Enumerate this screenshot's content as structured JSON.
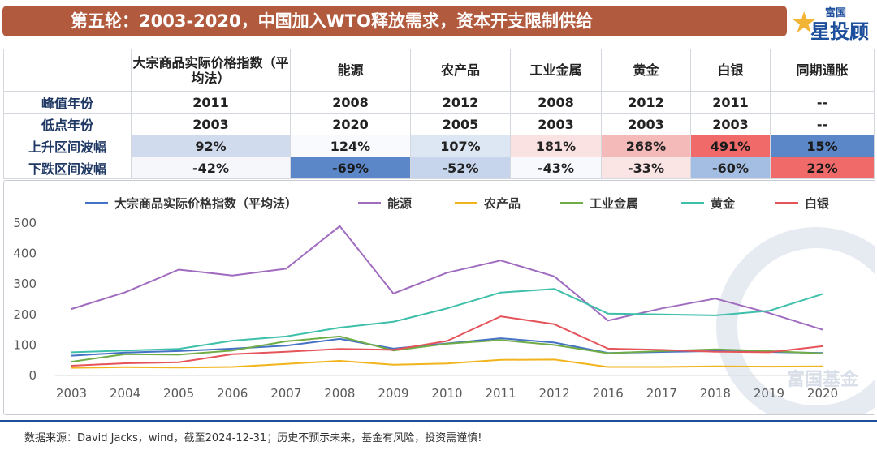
{
  "header": {
    "title": "第五轮：2003-2020，中国加入WTO释放需求，资本开支限制供给",
    "logo_small": "富国",
    "logo_big": "星投顾"
  },
  "table": {
    "columns": [
      "大宗商品实际价格指数（平均法）",
      "能源",
      "农产品",
      "工业金属",
      "黄金",
      "白银",
      "同期通胀"
    ],
    "rows": [
      {
        "label": "峰值年份",
        "cells": [
          "2011",
          "2008",
          "2012",
          "2008",
          "2012",
          "2011",
          "--"
        ]
      },
      {
        "label": "低点年份",
        "cells": [
          "2003",
          "2020",
          "2005",
          "2003",
          "2003",
          "2003",
          "--"
        ]
      },
      {
        "label": "上升区间波幅",
        "cells": [
          "92%",
          "124%",
          "107%",
          "181%",
          "268%",
          "491%",
          "15%"
        ],
        "colors": [
          "#d0dcee",
          "#f9fafd",
          "#dde6f3",
          "#fbe2e2",
          "#f4b9b9",
          "#f06a6a",
          "#5b86c8"
        ]
      },
      {
        "label": "下跌区间波幅",
        "cells": [
          "-42%",
          "-69%",
          "-52%",
          "-43%",
          "-33%",
          "-60%",
          "22%"
        ],
        "colors": [
          "#f5f7fb",
          "#5b86c8",
          "#c6d5ec",
          "#f7f9fc",
          "#fbe4e4",
          "#a4bde2",
          "#f06a6a"
        ]
      }
    ]
  },
  "chart_data": {
    "type": "line",
    "categories": [
      "2003",
      "2004",
      "2005",
      "2006",
      "2007",
      "2008",
      "2009",
      "2010",
      "2011",
      "2012",
      "2016",
      "2017",
      "2018",
      "2019",
      "2020"
    ],
    "ylim": [
      0,
      500
    ],
    "yticks": [
      "0",
      "100",
      "200",
      "300",
      "400",
      "500"
    ],
    "series": [
      {
        "name": "大宗商品实际价格指数（平均法）",
        "color": "#4472c4",
        "values": [
          65,
          75,
          80,
          88,
          98,
          120,
          88,
          105,
          122,
          108,
          74,
          77,
          80,
          77,
          74
        ]
      },
      {
        "name": "能源",
        "color": "#a06cc0",
        "values": [
          218,
          273,
          347,
          328,
          350,
          490,
          269,
          337,
          377,
          325,
          180,
          220,
          252,
          205,
          150
        ]
      },
      {
        "name": "农产品",
        "color": "#f2b41c",
        "values": [
          25,
          27,
          26,
          28,
          38,
          48,
          35,
          39,
          51,
          52,
          28,
          28,
          30,
          29,
          30
        ]
      },
      {
        "name": "工业金属",
        "color": "#70ad47",
        "values": [
          45,
          70,
          68,
          82,
          112,
          128,
          82,
          104,
          116,
          100,
          73,
          80,
          86,
          80,
          72
        ]
      },
      {
        "name": "黄金",
        "color": "#3dbfaa",
        "values": [
          76,
          82,
          87,
          114,
          128,
          157,
          176,
          220,
          272,
          284,
          203,
          200,
          197,
          212,
          267
        ]
      },
      {
        "name": "白银",
        "color": "#e5545a",
        "values": [
          32,
          40,
          43,
          70,
          78,
          87,
          84,
          113,
          194,
          168,
          88,
          84,
          78,
          76,
          96
        ]
      }
    ],
    "watermark": "富国基金"
  },
  "footer": {
    "source": "数据来源：David Jacks，wind，截至2024-12-31；历史不预示未来，基金有风险，投资需谨慎!"
  }
}
